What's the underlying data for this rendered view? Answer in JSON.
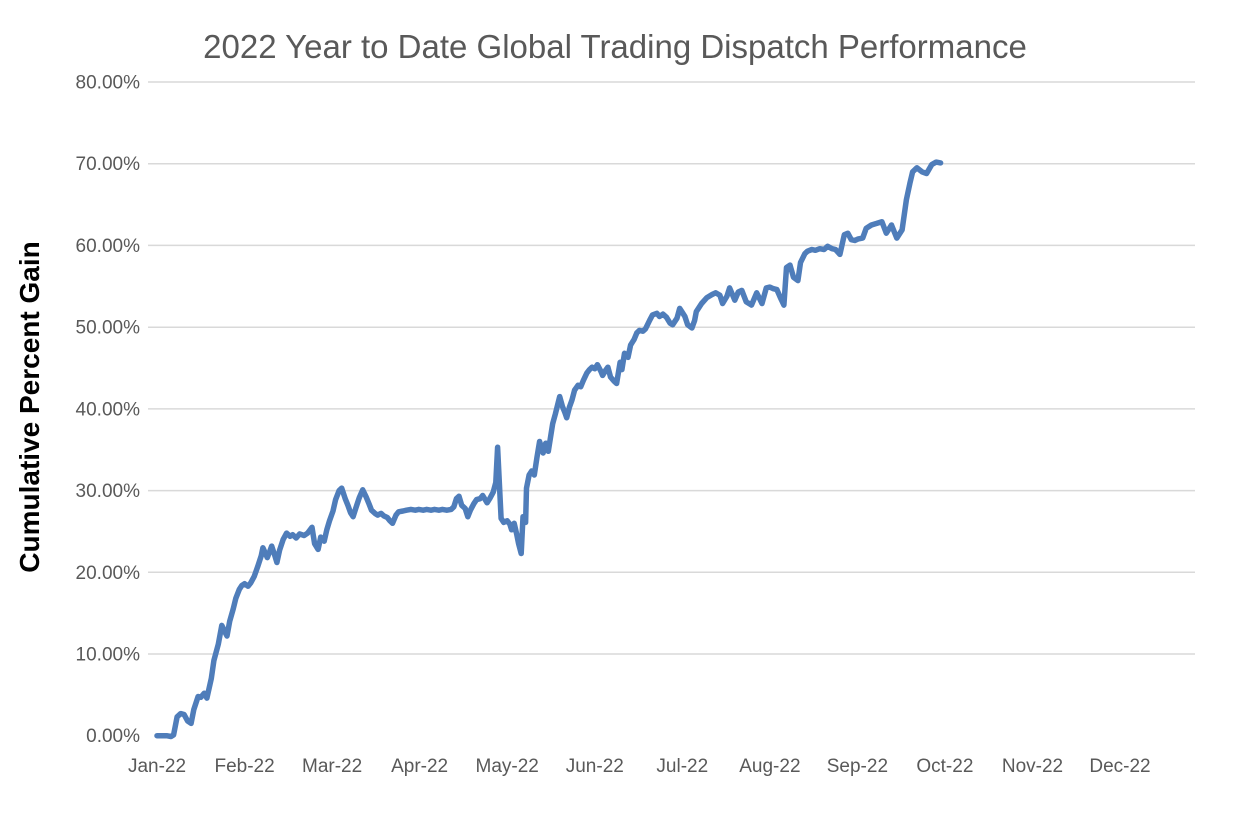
{
  "chart_data": {
    "type": "line",
    "title": "2022 Year to Date Global Trading Dispatch Performance",
    "ylabel": "Cumulative Percent Gain",
    "xlabel": "",
    "legend_position": "none",
    "grid": "horizontal-only",
    "ylim": [
      0,
      80
    ],
    "x_range_months": [
      0,
      11.85
    ],
    "x_tick_labels": [
      "Jan-22",
      "Feb-22",
      "Mar-22",
      "Apr-22",
      "May-22",
      "Jun-22",
      "Jul-22",
      "Aug-22",
      "Sep-22",
      "Oct-22",
      "Nov-22",
      "Dec-22"
    ],
    "y_tick_labels": [
      "0.00%",
      "10.00%",
      "20.00%",
      "30.00%",
      "40.00%",
      "50.00%",
      "60.00%",
      "70.00%",
      "80.00%"
    ],
    "y_tick_values": [
      0,
      10,
      20,
      30,
      40,
      50,
      60,
      70,
      80
    ],
    "y_gridline_values": [
      10,
      20,
      30,
      40,
      50,
      60,
      70,
      80
    ],
    "colors": {
      "line": "#4F7DBA",
      "gridline": "#D9D9D9",
      "title_text": "#595959",
      "tick_text": "#595959",
      "axis_title_text": "#000000",
      "background": "#FFFFFF"
    },
    "series": [
      {
        "name": "Cumulative Percent Gain",
        "x_unit": "months since 2022-01-01 (0 = Jan-22 tick, 9 = Oct-22 tick)",
        "y_unit": "percent",
        "points": [
          [
            0.0,
            0.0
          ],
          [
            0.06,
            0.0
          ],
          [
            0.11,
            0.0
          ],
          [
            0.16,
            -0.1
          ],
          [
            0.19,
            0.1
          ],
          [
            0.23,
            2.3
          ],
          [
            0.27,
            2.7
          ],
          [
            0.31,
            2.6
          ],
          [
            0.35,
            1.8
          ],
          [
            0.39,
            1.5
          ],
          [
            0.42,
            3.2
          ],
          [
            0.47,
            4.8
          ],
          [
            0.5,
            4.7
          ],
          [
            0.54,
            5.2
          ],
          [
            0.57,
            4.6
          ],
          [
            0.62,
            7.0
          ],
          [
            0.65,
            9.2
          ],
          [
            0.7,
            11.2
          ],
          [
            0.74,
            13.5
          ],
          [
            0.78,
            12.6
          ],
          [
            0.8,
            12.2
          ],
          [
            0.83,
            14.0
          ],
          [
            0.87,
            15.5
          ],
          [
            0.9,
            16.8
          ],
          [
            0.94,
            17.9
          ],
          [
            0.97,
            18.4
          ],
          [
            1.0,
            18.6
          ],
          [
            1.04,
            18.3
          ],
          [
            1.07,
            18.7
          ],
          [
            1.11,
            19.5
          ],
          [
            1.15,
            20.7
          ],
          [
            1.19,
            22.0
          ],
          [
            1.21,
            23.0
          ],
          [
            1.26,
            21.8
          ],
          [
            1.29,
            22.6
          ],
          [
            1.31,
            23.2
          ],
          [
            1.35,
            21.9
          ],
          [
            1.37,
            21.2
          ],
          [
            1.4,
            22.7
          ],
          [
            1.44,
            24.0
          ],
          [
            1.48,
            24.8
          ],
          [
            1.52,
            24.4
          ],
          [
            1.55,
            24.6
          ],
          [
            1.59,
            24.2
          ],
          [
            1.63,
            24.7
          ],
          [
            1.68,
            24.5
          ],
          [
            1.72,
            24.8
          ],
          [
            1.77,
            25.5
          ],
          [
            1.8,
            23.5
          ],
          [
            1.84,
            22.8
          ],
          [
            1.87,
            24.3
          ],
          [
            1.91,
            23.8
          ],
          [
            1.94,
            25.2
          ],
          [
            1.97,
            26.3
          ],
          [
            2.01,
            27.5
          ],
          [
            2.04,
            28.9
          ],
          [
            2.08,
            30.0
          ],
          [
            2.11,
            30.3
          ],
          [
            2.15,
            29.0
          ],
          [
            2.18,
            28.2
          ],
          [
            2.21,
            27.3
          ],
          [
            2.24,
            26.8
          ],
          [
            2.27,
            27.8
          ],
          [
            2.31,
            29.1
          ],
          [
            2.35,
            30.1
          ],
          [
            2.39,
            29.2
          ],
          [
            2.42,
            28.4
          ],
          [
            2.45,
            27.6
          ],
          [
            2.49,
            27.2
          ],
          [
            2.52,
            27.0
          ],
          [
            2.56,
            27.2
          ],
          [
            2.59,
            26.9
          ],
          [
            2.63,
            26.7
          ],
          [
            2.66,
            26.3
          ],
          [
            2.69,
            26.0
          ],
          [
            2.73,
            27.0
          ],
          [
            2.76,
            27.4
          ],
          [
            2.81,
            27.5
          ],
          [
            2.85,
            27.6
          ],
          [
            2.9,
            27.7
          ],
          [
            2.95,
            27.6
          ],
          [
            2.99,
            27.7
          ],
          [
            3.04,
            27.6
          ],
          [
            3.08,
            27.7
          ],
          [
            3.13,
            27.6
          ],
          [
            3.17,
            27.7
          ],
          [
            3.22,
            27.6
          ],
          [
            3.26,
            27.7
          ],
          [
            3.31,
            27.6
          ],
          [
            3.36,
            27.7
          ],
          [
            3.39,
            28.0
          ],
          [
            3.42,
            29.0
          ],
          [
            3.45,
            29.3
          ],
          [
            3.48,
            28.2
          ],
          [
            3.52,
            27.8
          ],
          [
            3.55,
            26.8
          ],
          [
            3.58,
            27.6
          ],
          [
            3.62,
            28.4
          ],
          [
            3.65,
            28.9
          ],
          [
            3.69,
            29.0
          ],
          [
            3.72,
            29.4
          ],
          [
            3.77,
            28.5
          ],
          [
            3.8,
            29.0
          ],
          [
            3.84,
            29.8
          ],
          [
            3.87,
            31.0
          ],
          [
            3.89,
            35.3
          ],
          [
            3.93,
            26.6
          ],
          [
            3.96,
            26.1
          ],
          [
            4.0,
            26.3
          ],
          [
            4.03,
            25.9
          ],
          [
            4.05,
            25.2
          ],
          [
            4.08,
            26.0
          ],
          [
            4.11,
            24.6
          ],
          [
            4.13,
            23.5
          ],
          [
            4.16,
            22.3
          ],
          [
            4.18,
            26.8
          ],
          [
            4.21,
            26.1
          ],
          [
            4.22,
            30.3
          ],
          [
            4.25,
            31.9
          ],
          [
            4.28,
            32.4
          ],
          [
            4.31,
            31.9
          ],
          [
            4.34,
            34.1
          ],
          [
            4.37,
            36.0
          ],
          [
            4.41,
            34.6
          ],
          [
            4.44,
            35.8
          ],
          [
            4.47,
            34.8
          ],
          [
            4.52,
            38.2
          ],
          [
            4.55,
            39.4
          ],
          [
            4.6,
            41.5
          ],
          [
            4.63,
            40.3
          ],
          [
            4.66,
            39.5
          ],
          [
            4.68,
            38.9
          ],
          [
            4.71,
            40.2
          ],
          [
            4.74,
            41.1
          ],
          [
            4.77,
            42.3
          ],
          [
            4.81,
            42.9
          ],
          [
            4.84,
            42.7
          ],
          [
            4.87,
            43.5
          ],
          [
            4.91,
            44.4
          ],
          [
            4.94,
            44.8
          ],
          [
            4.97,
            45.1
          ],
          [
            5.0,
            44.9
          ],
          [
            5.03,
            45.4
          ],
          [
            5.07,
            44.6
          ],
          [
            5.09,
            44.1
          ],
          [
            5.13,
            44.8
          ],
          [
            5.15,
            45.1
          ],
          [
            5.18,
            43.9
          ],
          [
            5.22,
            43.4
          ],
          [
            5.25,
            43.1
          ],
          [
            5.29,
            45.7
          ],
          [
            5.31,
            44.8
          ],
          [
            5.34,
            46.8
          ],
          [
            5.38,
            46.3
          ],
          [
            5.41,
            47.8
          ],
          [
            5.45,
            48.5
          ],
          [
            5.48,
            49.3
          ],
          [
            5.51,
            49.6
          ],
          [
            5.55,
            49.5
          ],
          [
            5.58,
            49.8
          ],
          [
            5.63,
            50.9
          ],
          [
            5.66,
            51.5
          ],
          [
            5.71,
            51.7
          ],
          [
            5.74,
            51.3
          ],
          [
            5.78,
            51.6
          ],
          [
            5.82,
            51.2
          ],
          [
            5.86,
            50.5
          ],
          [
            5.89,
            50.3
          ],
          [
            5.94,
            51.1
          ],
          [
            5.97,
            52.3
          ],
          [
            6.0,
            51.8
          ],
          [
            6.03,
            51.3
          ],
          [
            6.06,
            50.3
          ],
          [
            6.11,
            49.9
          ],
          [
            6.14,
            50.8
          ],
          [
            6.16,
            51.9
          ],
          [
            6.22,
            52.9
          ],
          [
            6.28,
            53.6
          ],
          [
            6.34,
            54.0
          ],
          [
            6.38,
            54.2
          ],
          [
            6.43,
            53.9
          ],
          [
            6.46,
            52.9
          ],
          [
            6.51,
            53.8
          ],
          [
            6.54,
            54.8
          ],
          [
            6.6,
            53.3
          ],
          [
            6.64,
            54.3
          ],
          [
            6.68,
            54.5
          ],
          [
            6.73,
            53.1
          ],
          [
            6.79,
            52.7
          ],
          [
            6.85,
            54.2
          ],
          [
            6.91,
            52.9
          ],
          [
            6.96,
            54.8
          ],
          [
            7.0,
            54.9
          ],
          [
            7.04,
            54.7
          ],
          [
            7.08,
            54.6
          ],
          [
            7.12,
            53.6
          ],
          [
            7.16,
            52.7
          ],
          [
            7.19,
            57.3
          ],
          [
            7.23,
            57.6
          ],
          [
            7.27,
            56.1
          ],
          [
            7.32,
            55.7
          ],
          [
            7.35,
            57.9
          ],
          [
            7.4,
            59.0
          ],
          [
            7.43,
            59.3
          ],
          [
            7.48,
            59.5
          ],
          [
            7.52,
            59.4
          ],
          [
            7.57,
            59.6
          ],
          [
            7.62,
            59.5
          ],
          [
            7.66,
            59.9
          ],
          [
            7.71,
            59.6
          ],
          [
            7.75,
            59.5
          ],
          [
            7.8,
            58.9
          ],
          [
            7.85,
            61.3
          ],
          [
            7.89,
            61.5
          ],
          [
            7.93,
            60.7
          ],
          [
            7.97,
            60.6
          ],
          [
            8.01,
            60.8
          ],
          [
            8.06,
            60.9
          ],
          [
            8.1,
            62.1
          ],
          [
            8.16,
            62.5
          ],
          [
            8.22,
            62.7
          ],
          [
            8.28,
            62.9
          ],
          [
            8.33,
            61.5
          ],
          [
            8.39,
            62.5
          ],
          [
            8.45,
            60.9
          ],
          [
            8.51,
            61.9
          ],
          [
            8.56,
            65.6
          ],
          [
            8.6,
            67.6
          ],
          [
            8.63,
            69.0
          ],
          [
            8.68,
            69.5
          ],
          [
            8.74,
            69.0
          ],
          [
            8.79,
            68.8
          ],
          [
            8.85,
            69.9
          ],
          [
            8.9,
            70.2
          ],
          [
            8.95,
            70.1
          ]
        ]
      }
    ]
  }
}
